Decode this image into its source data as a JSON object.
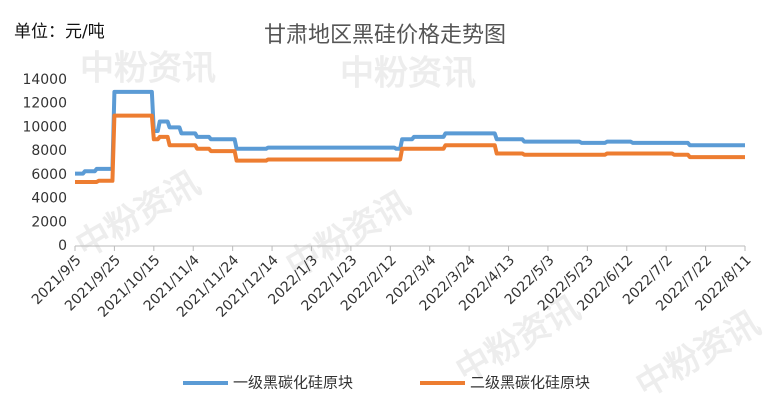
{
  "chart_data": {
    "type": "line",
    "title": "甘肃地区黑硅价格走势图",
    "unit_label": "单位：元/吨",
    "watermark": "中粉资讯",
    "xlim": [
      "2021/9/5",
      "2022/8/11"
    ],
    "xticks": [
      "2021/9/5",
      "2021/9/25",
      "2021/10/15",
      "2021/11/4",
      "2021/11/24",
      "2021/12/14",
      "2022/1/3",
      "2022/1/23",
      "2022/2/12",
      "2022/3/4",
      "2022/3/24",
      "2022/4/13",
      "2022/5/3",
      "2022/5/23",
      "2022/6/12",
      "2022/7/2",
      "2022/7/22",
      "2022/8/11"
    ],
    "ylim": [
      0,
      14000
    ],
    "yticks": [
      0,
      2000,
      4000,
      6000,
      8000,
      10000,
      12000,
      14000
    ],
    "grid": false,
    "legend": "bottom",
    "series": [
      {
        "name": "一级黑碳化硅原块",
        "color": "#5b9bd5",
        "x": [
          "2021/9/5",
          "2021/9/9",
          "2021/9/10",
          "2021/9/15",
          "2021/9/16",
          "2021/9/24",
          "2021/9/25",
          "2021/10/14",
          "2021/10/15",
          "2021/10/17",
          "2021/10/18",
          "2021/10/22",
          "2021/10/23",
          "2021/10/28",
          "2021/10/29",
          "2021/11/5",
          "2021/11/6",
          "2021/11/12",
          "2021/11/13",
          "2021/11/25",
          "2021/11/26",
          "2021/12/11",
          "2021/12/12",
          "2022/2/14",
          "2022/2/15",
          "2022/2/17",
          "2022/2/18",
          "2022/2/23",
          "2022/2/24",
          "2022/3/11",
          "2022/3/12",
          "2022/4/6",
          "2022/4/7",
          "2022/4/20",
          "2022/4/21",
          "2022/5/19",
          "2022/5/20",
          "2022/6/1",
          "2022/6/2",
          "2022/6/14",
          "2022/6/15",
          "2022/7/13",
          "2022/7/14",
          "2022/8/11"
        ],
        "values": [
          6100,
          6100,
          6300,
          6300,
          6500,
          6500,
          13000,
          13000,
          9700,
          9700,
          10500,
          10500,
          10000,
          10000,
          9500,
          9500,
          9200,
          9200,
          9000,
          9000,
          8200,
          8200,
          8300,
          8300,
          8200,
          8200,
          9000,
          9000,
          9200,
          9200,
          9500,
          9500,
          9000,
          9000,
          8800,
          8800,
          8700,
          8700,
          8800,
          8800,
          8700,
          8700,
          8500,
          8500
        ]
      },
      {
        "name": "二级黑碳化硅原块",
        "color": "#ed7d31",
        "x": [
          "2021/9/5",
          "2021/9/16",
          "2021/9/17",
          "2021/9/24",
          "2021/9/25",
          "2021/10/14",
          "2021/10/15",
          "2021/10/17",
          "2021/10/18",
          "2021/10/22",
          "2021/10/23",
          "2021/11/5",
          "2021/11/6",
          "2021/11/12",
          "2021/11/13",
          "2021/11/25",
          "2021/11/26",
          "2021/12/11",
          "2021/12/12",
          "2022/2/17",
          "2022/2/18",
          "2022/3/11",
          "2022/3/12",
          "2022/4/6",
          "2022/4/7",
          "2022/4/20",
          "2022/4/21",
          "2022/6/1",
          "2022/6/2",
          "2022/7/5",
          "2022/7/6",
          "2022/7/13",
          "2022/7/14",
          "2022/8/11"
        ],
        "values": [
          5400,
          5400,
          5500,
          5500,
          11000,
          11000,
          9000,
          9000,
          9200,
          9200,
          8500,
          8500,
          8200,
          8200,
          8000,
          8000,
          7200,
          7200,
          7300,
          7300,
          8200,
          8200,
          8500,
          8500,
          7800,
          7800,
          7700,
          7700,
          7800,
          7800,
          7700,
          7700,
          7500,
          7500
        ]
      }
    ]
  }
}
